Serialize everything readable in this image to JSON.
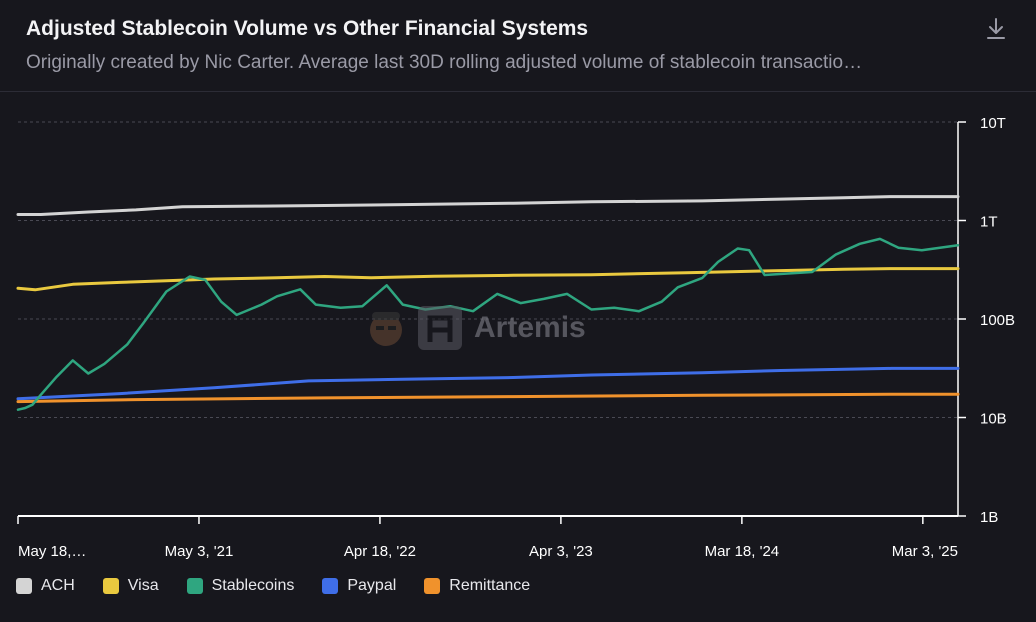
{
  "header": {
    "title": "Adjusted Stablecoin Volume vs Other Financial Systems",
    "subtitle": "Originally created by Nic Carter. Average last 30D rolling adjusted volume of stablecoin transactio…"
  },
  "watermark": {
    "text": "Artemis"
  },
  "colors": {
    "ACH": "#d4d4d4",
    "Visa": "#e9c93f",
    "Stablecoins": "#2fa680",
    "Paypal": "#3f6ee8",
    "Remittance": "#f0922c"
  },
  "chart_data": {
    "type": "line",
    "y_scale": "log",
    "ylim": [
      1000000000,
      10000000000000
    ],
    "y_ticks": [
      {
        "value": 10000000000000,
        "label": "10T"
      },
      {
        "value": 1000000000000,
        "label": "1T"
      },
      {
        "value": 100000000000,
        "label": "100B"
      },
      {
        "value": 10000000000,
        "label": "10B"
      },
      {
        "value": 1000000000,
        "label": "1B"
      }
    ],
    "xlim": [
      "2020-05-18",
      "2025-05-10"
    ],
    "x_ticks": [
      {
        "date": "2020-05-18",
        "label": "May 18,…"
      },
      {
        "date": "2021-05-03",
        "label": "May 3, '21"
      },
      {
        "date": "2022-04-18",
        "label": "Apr 18, '22"
      },
      {
        "date": "2023-04-03",
        "label": "Apr 3, '23"
      },
      {
        "date": "2024-03-18",
        "label": "Mar 18, '24"
      },
      {
        "date": "2025-03-03",
        "label": "Mar 3, '25"
      }
    ],
    "grid": true,
    "legend": "bottom-left",
    "series": [
      {
        "name": "ACH",
        "points": [
          [
            "2020-05-18",
            1150000000000.0
          ],
          [
            "2020-07-01",
            1150000000000.0
          ],
          [
            "2020-10-01",
            1220000000000.0
          ],
          [
            "2021-01-01",
            1280000000000.0
          ],
          [
            "2021-04-01",
            1380000000000.0
          ],
          [
            "2021-09-01",
            1400000000000.0
          ],
          [
            "2022-01-01",
            1420000000000.0
          ],
          [
            "2022-06-01",
            1450000000000.0
          ],
          [
            "2023-01-01",
            1500000000000.0
          ],
          [
            "2023-06-01",
            1550000000000.0
          ],
          [
            "2024-01-01",
            1580000000000.0
          ],
          [
            "2024-06-01",
            1650000000000.0
          ],
          [
            "2024-10-01",
            1700000000000.0
          ],
          [
            "2025-01-01",
            1750000000000.0
          ],
          [
            "2025-05-10",
            1750000000000.0
          ]
        ]
      },
      {
        "name": "Visa",
        "points": [
          [
            "2020-05-18",
            205000000000.0
          ],
          [
            "2020-06-20",
            198000000000.0
          ],
          [
            "2020-09-01",
            225000000000.0
          ],
          [
            "2020-12-01",
            235000000000.0
          ],
          [
            "2021-03-01",
            245000000000.0
          ],
          [
            "2021-06-01",
            255000000000.0
          ],
          [
            "2021-10-01",
            262000000000.0
          ],
          [
            "2022-01-01",
            270000000000.0
          ],
          [
            "2022-04-01",
            262000000000.0
          ],
          [
            "2022-08-01",
            272000000000.0
          ],
          [
            "2023-01-01",
            278000000000.0
          ],
          [
            "2023-06-01",
            282000000000.0
          ],
          [
            "2023-12-01",
            295000000000.0
          ],
          [
            "2024-06-01",
            310000000000.0
          ],
          [
            "2024-10-01",
            320000000000.0
          ],
          [
            "2025-01-01",
            325000000000.0
          ],
          [
            "2025-05-10",
            325000000000.0
          ]
        ]
      },
      {
        "name": "Stablecoins",
        "points": [
          [
            "2020-05-18",
            12000000000.0
          ],
          [
            "2020-06-01",
            12500000000.0
          ],
          [
            "2020-06-15",
            13500000000.0
          ],
          [
            "2020-07-01",
            17000000000.0
          ],
          [
            "2020-08-01",
            26000000000.0
          ],
          [
            "2020-09-01",
            38000000000.0
          ],
          [
            "2020-10-01",
            28000000000.0
          ],
          [
            "2020-11-01",
            35000000000.0
          ],
          [
            "2020-12-15",
            55000000000.0
          ],
          [
            "2021-01-15",
            90000000000.0
          ],
          [
            "2021-03-01",
            190000000000.0
          ],
          [
            "2021-04-15",
            270000000000.0
          ],
          [
            "2021-05-15",
            250000000000.0
          ],
          [
            "2021-06-15",
            150000000000.0
          ],
          [
            "2021-07-15",
            110000000000.0
          ],
          [
            "2021-09-01",
            140000000000.0
          ],
          [
            "2021-10-01",
            170000000000.0
          ],
          [
            "2021-11-15",
            200000000000.0
          ],
          [
            "2021-12-15",
            140000000000.0
          ],
          [
            "2022-02-01",
            130000000000.0
          ],
          [
            "2022-03-15",
            135000000000.0
          ],
          [
            "2022-05-01",
            220000000000.0
          ],
          [
            "2022-06-01",
            140000000000.0
          ],
          [
            "2022-07-15",
            125000000000.0
          ],
          [
            "2022-09-01",
            135000000000.0
          ],
          [
            "2022-10-15",
            120000000000.0
          ],
          [
            "2022-12-01",
            180000000000.0
          ],
          [
            "2023-01-15",
            145000000000.0
          ],
          [
            "2023-03-01",
            160000000000.0
          ],
          [
            "2023-04-15",
            180000000000.0
          ],
          [
            "2023-06-01",
            125000000000.0
          ],
          [
            "2023-07-15",
            130000000000.0
          ],
          [
            "2023-09-01",
            120000000000.0
          ],
          [
            "2023-10-15",
            150000000000.0
          ],
          [
            "2023-11-15",
            210000000000.0
          ],
          [
            "2024-01-01",
            260000000000.0
          ],
          [
            "2024-02-01",
            380000000000.0
          ],
          [
            "2024-03-10",
            520000000000.0
          ],
          [
            "2024-04-01",
            500000000000.0
          ],
          [
            "2024-05-01",
            280000000000.0
          ],
          [
            "2024-06-15",
            290000000000.0
          ],
          [
            "2024-08-01",
            300000000000.0
          ],
          [
            "2024-09-15",
            450000000000.0
          ],
          [
            "2024-11-01",
            580000000000.0
          ],
          [
            "2024-12-10",
            650000000000.0
          ],
          [
            "2025-01-15",
            530000000000.0
          ],
          [
            "2025-03-01",
            500000000000.0
          ],
          [
            "2025-05-10",
            560000000000.0
          ]
        ]
      },
      {
        "name": "Paypal",
        "points": [
          [
            "2020-05-18",
            15500000000.0
          ],
          [
            "2020-12-01",
            17500000000.0
          ],
          [
            "2021-06-01",
            20000000000.0
          ],
          [
            "2021-12-01",
            23500000000.0
          ],
          [
            "2022-06-01",
            24500000000.0
          ],
          [
            "2023-01-01",
            25500000000.0
          ],
          [
            "2023-06-01",
            27000000000.0
          ],
          [
            "2024-01-01",
            28500000000.0
          ],
          [
            "2024-06-01",
            30000000000.0
          ],
          [
            "2025-01-01",
            31500000000.0
          ],
          [
            "2025-05-10",
            31500000000.0
          ]
        ]
      },
      {
        "name": "Remittance",
        "points": [
          [
            "2020-05-18",
            14500000000.0
          ],
          [
            "2021-01-01",
            15200000000.0
          ],
          [
            "2022-01-01",
            15800000000.0
          ],
          [
            "2023-01-01",
            16300000000.0
          ],
          [
            "2024-01-01",
            16800000000.0
          ],
          [
            "2025-01-01",
            17200000000.0
          ],
          [
            "2025-05-10",
            17200000000.0
          ]
        ]
      }
    ]
  }
}
